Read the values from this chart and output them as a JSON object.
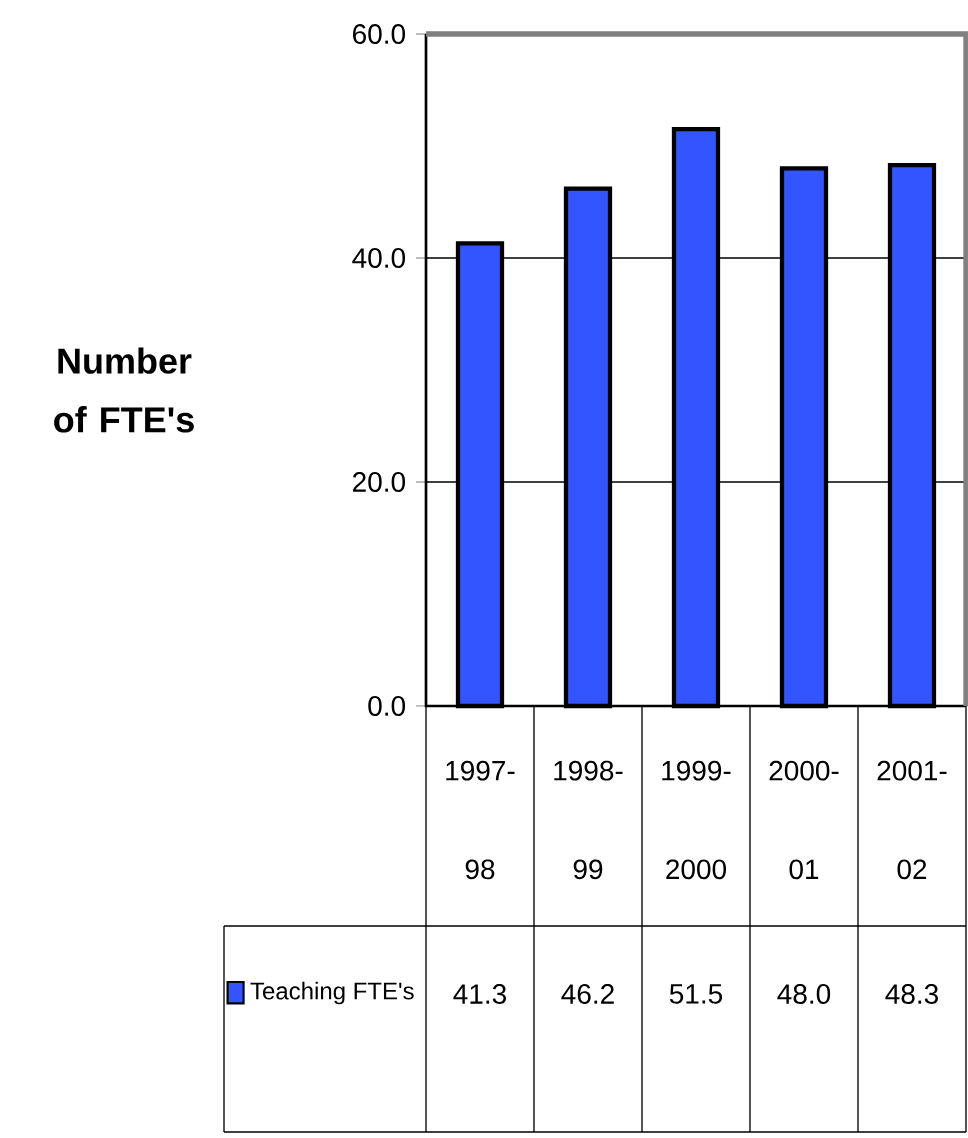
{
  "chart_data": {
    "type": "bar",
    "ylabel": "Number of FTE's",
    "categories": [
      "1997-98",
      "1998-99",
      "1999-2000",
      "2000-01",
      "2001-02"
    ],
    "series": [
      {
        "name": "Teaching FTE's",
        "color": "#3355ff",
        "values": [
          41.3,
          46.2,
          51.5,
          48.0,
          48.3
        ],
        "value_labels": [
          "41.3",
          "46.2",
          "51.5",
          "48.0",
          "48.3"
        ]
      }
    ],
    "ylim": [
      0,
      60
    ],
    "yticks": [
      {
        "value": 0,
        "label": "0.0"
      },
      {
        "value": 20,
        "label": "20.0"
      },
      {
        "value": 40,
        "label": "40.0"
      },
      {
        "value": 60,
        "label": "60.0"
      }
    ],
    "grid": "y",
    "legend": "bottom"
  }
}
